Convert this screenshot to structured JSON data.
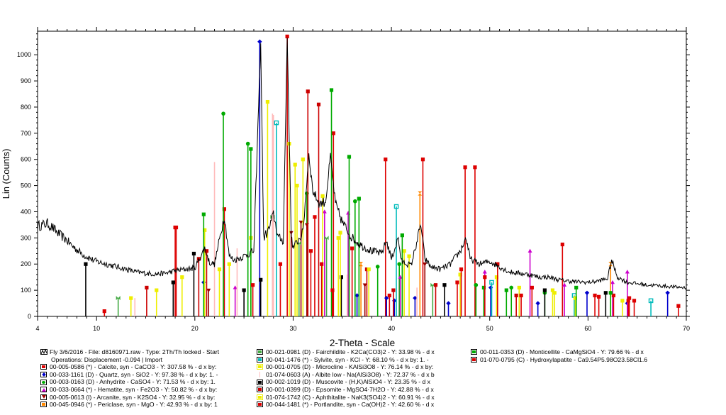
{
  "chart_data": {
    "type": "line",
    "title": "",
    "xlabel": "2-Theta - Scale",
    "ylabel": "Lin (Counts)",
    "xlim": [
      4,
      70
    ],
    "ylim": [
      0,
      1090
    ],
    "x_ticks": [
      4,
      10,
      20,
      30,
      40,
      50,
      60,
      70
    ],
    "y_ticks": [
      0,
      100,
      200,
      300,
      400,
      500,
      600,
      700,
      800,
      900,
      1000
    ],
    "grid": false,
    "legend_placement": "bottom",
    "raw_pattern": {
      "name": "Fly 3/6/2016 - File: d8160971.raw - Type: 2Th/Th locked - Start",
      "color": "#000000",
      "points": [
        [
          4,
          345
        ],
        [
          4.5,
          350
        ],
        [
          5,
          355
        ],
        [
          5.5,
          340
        ],
        [
          6,
          320
        ],
        [
          6.5,
          305
        ],
        [
          7,
          290
        ],
        [
          7.5,
          270
        ],
        [
          8,
          255
        ],
        [
          8.5,
          240
        ],
        [
          9,
          228
        ],
        [
          9.5,
          218
        ],
        [
          10,
          210
        ],
        [
          11,
          200
        ],
        [
          12,
          190
        ],
        [
          13,
          180
        ],
        [
          14,
          170
        ],
        [
          15,
          165
        ],
        [
          16,
          162
        ],
        [
          17,
          165
        ],
        [
          18,
          175
        ],
        [
          19,
          180
        ],
        [
          20,
          185
        ],
        [
          21,
          260
        ],
        [
          21.5,
          205
        ],
        [
          22,
          200
        ],
        [
          23,
          385
        ],
        [
          23.5,
          230
        ],
        [
          24,
          215
        ],
        [
          25,
          230
        ],
        [
          26,
          250
        ],
        [
          26.7,
          1050
        ],
        [
          27,
          300
        ],
        [
          27.5,
          330
        ],
        [
          28,
          390
        ],
        [
          28.5,
          300
        ],
        [
          29,
          290
        ],
        [
          29.4,
          1070
        ],
        [
          29.8,
          320
        ],
        [
          30,
          260
        ],
        [
          31,
          320
        ],
        [
          31.6,
          620
        ],
        [
          32,
          480
        ],
        [
          32.7,
          430
        ],
        [
          33.3,
          440
        ],
        [
          33.8,
          610
        ],
        [
          34.3,
          430
        ],
        [
          35,
          360
        ],
        [
          36,
          300
        ],
        [
          37,
          270
        ],
        [
          38,
          250
        ],
        [
          39,
          240
        ],
        [
          39.5,
          290
        ],
        [
          40,
          220
        ],
        [
          40.7,
          300
        ],
        [
          41,
          210
        ],
        [
          42,
          195
        ],
        [
          43,
          350
        ],
        [
          43.4,
          220
        ],
        [
          44,
          190
        ],
        [
          45,
          180
        ],
        [
          46,
          200
        ],
        [
          47,
          250
        ],
        [
          47.6,
          300
        ],
        [
          48,
          220
        ],
        [
          49,
          200
        ],
        [
          50,
          210
        ],
        [
          51,
          190
        ],
        [
          52,
          170
        ],
        [
          53,
          165
        ],
        [
          54,
          160
        ],
        [
          55,
          150
        ],
        [
          56,
          150
        ],
        [
          57,
          140
        ],
        [
          58,
          135
        ],
        [
          59,
          132
        ],
        [
          60,
          130
        ],
        [
          61,
          135
        ],
        [
          62,
          145
        ],
        [
          62.4,
          215
        ],
        [
          63,
          150
        ],
        [
          64,
          130
        ],
        [
          65,
          125
        ],
        [
          66,
          120
        ],
        [
          67,
          118
        ],
        [
          68,
          115
        ],
        [
          69,
          112
        ],
        [
          70,
          110
        ]
      ]
    },
    "phases": [
      {
        "name": "00-005-0586 (*) - Calcite, syn - CaCO3 - Y: 307.58 % - d x by:",
        "color": "#dd0000",
        "marker": "square",
        "peaks": [
          [
            18.0,
            340
          ],
          [
            23.0,
            410
          ],
          [
            29.4,
            1070
          ],
          [
            36.0,
            260
          ],
          [
            39.4,
            600
          ],
          [
            43.2,
            600
          ],
          [
            47.5,
            570
          ],
          [
            48.5,
            570
          ],
          [
            57.4,
            275
          ],
          [
            60.7,
            80
          ],
          [
            61.1,
            75
          ],
          [
            64.7,
            60
          ]
        ]
      },
      {
        "name": "00-033-1161 (D) - Quartz, syn - SiO2 - Y: 97.38 % - d x by: 1. -",
        "color": "#0000cc",
        "marker": "diamond",
        "peaks": [
          [
            20.9,
            130
          ],
          [
            26.6,
            1050
          ],
          [
            36.5,
            80
          ],
          [
            39.5,
            70
          ],
          [
            40.3,
            60
          ],
          [
            42.4,
            70
          ],
          [
            45.8,
            50
          ],
          [
            50.1,
            110
          ],
          [
            54.9,
            50
          ],
          [
            59.9,
            90
          ],
          [
            64.0,
            50
          ],
          [
            68.1,
            90
          ]
        ]
      },
      {
        "name": "00-003-0163 (D) - Anhydrite - CaSO4 - Y: 71.53 % - d x by: 1.",
        "color": "#00aa00",
        "marker": "circle",
        "peaks": [
          [
            22.9,
            775
          ],
          [
            25.4,
            660
          ],
          [
            31.4,
            470
          ],
          [
            36.3,
            440
          ],
          [
            38.6,
            190
          ],
          [
            40.8,
            200
          ],
          [
            48.6,
            120
          ],
          [
            52.2,
            110
          ],
          [
            55.6,
            90
          ]
        ]
      },
      {
        "name": "00-033-0664 (*) - Hematite, syn - Fe2O3 - Y: 50.82 % - d x by:",
        "color": "#cc00cc",
        "marker": "triangle-up",
        "peaks": [
          [
            24.1,
            110
          ],
          [
            33.2,
            400
          ],
          [
            35.6,
            395
          ],
          [
            40.9,
            150
          ],
          [
            49.5,
            170
          ],
          [
            54.1,
            250
          ],
          [
            57.6,
            120
          ],
          [
            62.5,
            130
          ],
          [
            64.0,
            170
          ]
        ]
      },
      {
        "name": "00-005-0613 (I) - Arcanite, syn - K2SO4 - Y: 32.95 % - d x by:",
        "color": "#990000",
        "marker": "triangle-down",
        "peaks": [
          [
            21.4,
            100
          ],
          [
            29.8,
            320
          ],
          [
            30.8,
            360
          ],
          [
            31.4,
            350
          ],
          [
            37.3,
            120
          ],
          [
            43.4,
            200
          ]
        ]
      },
      {
        "name": "00-045-0946 (*) - Periclase, syn - MgO - Y: 42.93 % - d x by: 1",
        "color": "#ff8800",
        "marker": "hourglass",
        "peaks": [
          [
            36.9,
            200
          ],
          [
            42.9,
            470
          ],
          [
            62.3,
            200
          ]
        ]
      },
      {
        "name": "00-021-0981 (D) - Fairchildite - K2Ca(CO3)2 - Y: 33.98 % - d x",
        "color": "#44aa44",
        "marker": "bowtie",
        "peaks": [
          [
            12.2,
            70
          ],
          [
            27.9,
            380
          ],
          [
            30.6,
            280
          ],
          [
            33.4,
            300
          ],
          [
            44.2,
            120
          ]
        ]
      },
      {
        "name": "00-041-1476 (*) - Sylvite, syn - KCl - Y: 68.10 % - d x by: 1. -",
        "color": "#00bbbb",
        "marker": "square-h",
        "peaks": [
          [
            28.3,
            740
          ],
          [
            40.5,
            420
          ],
          [
            50.2,
            130
          ],
          [
            58.6,
            80
          ],
          [
            66.4,
            60
          ]
        ]
      },
      {
        "name": "00-001-0705 (D) - Microcline - KAlSi3O8 - Y: 76.14 % - d x by:",
        "color": "#eeee00",
        "marker": "square",
        "peaks": [
          [
            13.5,
            70
          ],
          [
            21.0,
            330
          ],
          [
            22.5,
            180
          ],
          [
            23.5,
            200
          ],
          [
            25.7,
            300
          ],
          [
            27.4,
            820
          ],
          [
            29.6,
            660
          ],
          [
            30.4,
            500
          ],
          [
            33.0,
            460
          ],
          [
            34.6,
            300
          ],
          [
            41.8,
            230
          ],
          [
            50.7,
            150
          ],
          [
            53.0,
            110
          ],
          [
            56.6,
            90
          ],
          [
            58.7,
            70
          ],
          [
            63.5,
            60
          ]
        ]
      },
      {
        "name": "01-074-0603 (A) - Albite low - Na(AlSi3O8) - Y: 72.37 % - d x b",
        "color": "#ffbbbb",
        "marker": "none",
        "peaks": [
          [
            13.9,
            70
          ],
          [
            22.0,
            590
          ],
          [
            24.3,
            260
          ],
          [
            27.9,
            775
          ],
          [
            28.0,
            770
          ],
          [
            30.2,
            200
          ],
          [
            35.5,
            160
          ],
          [
            42.6,
            110
          ]
        ]
      },
      {
        "name": "00-002-1019 (D) - Muscovite - (H,K)AlSiO4 - Y: 23.35 % - d x",
        "color": "#000000",
        "marker": "square",
        "peaks": [
          [
            8.9,
            200
          ],
          [
            17.8,
            130
          ],
          [
            19.9,
            240
          ],
          [
            25.0,
            100
          ],
          [
            26.7,
            140
          ],
          [
            34.9,
            150
          ],
          [
            45.4,
            120
          ],
          [
            55.6,
            100
          ],
          [
            61.8,
            90
          ]
        ]
      },
      {
        "name": "00-001-0399 (D) - Epsomite - MgSO4·7H2O - Y: 42.88 % - d x",
        "color": "#cc0000",
        "marker": "square",
        "peaks": [
          [
            15.1,
            110
          ],
          [
            20.4,
            220
          ],
          [
            21.2,
            250
          ],
          [
            31.5,
            860
          ],
          [
            32.6,
            810
          ],
          [
            37.5,
            180
          ],
          [
            40.2,
            100
          ],
          [
            44.5,
            120
          ],
          [
            52.7,
            80
          ]
        ]
      },
      {
        "name": "01-074-1742 (C) - Aphthitalite - NaK3(SO4)2 - Y: 60.91 % - d x",
        "color": "#eeee00",
        "marker": "square",
        "peaks": [
          [
            16.1,
            100
          ],
          [
            18.7,
            150
          ],
          [
            30.2,
            580
          ],
          [
            31.0,
            600
          ],
          [
            34.8,
            320
          ],
          [
            37.7,
            180
          ],
          [
            41.3,
            250
          ],
          [
            47.0,
            160
          ],
          [
            56.4,
            100
          ]
        ]
      },
      {
        "name": "00-044-1481 (*) - Portlandite, syn - Ca(OH)2 - Y: 42.60 % - d x",
        "color": "#dd0000",
        "marker": "square",
        "peaks": [
          [
            18.1,
            340
          ],
          [
            28.7,
            200
          ],
          [
            34.1,
            700
          ],
          [
            47.1,
            180
          ],
          [
            50.8,
            200
          ],
          [
            54.3,
            110
          ],
          [
            62.6,
            80
          ],
          [
            64.2,
            70
          ]
        ]
      },
      {
        "name": "00-011-0353 (D) - Monticellite - CaMgSiO4 - Y: 79.66 % - d x",
        "color": "#00aa00",
        "marker": "square",
        "peaks": [
          [
            20.9,
            390
          ],
          [
            25.7,
            640
          ],
          [
            33.9,
            865
          ],
          [
            35.7,
            610
          ],
          [
            36.7,
            450
          ],
          [
            41.1,
            310
          ],
          [
            49.4,
            110
          ],
          [
            51.7,
            100
          ],
          [
            58.8,
            110
          ],
          [
            62.3,
            90
          ]
        ]
      },
      {
        "name": "01-070-0795 (C) - Hydroxylapatite - Ca9.54P5.98O23.58Cl1.6",
        "color": "#dd0000",
        "marker": "square",
        "peaks": [
          [
            10.8,
            20
          ],
          [
            25.9,
            120
          ],
          [
            31.8,
            250
          ],
          [
            32.2,
            380
          ],
          [
            32.9,
            200
          ],
          [
            34.0,
            100
          ],
          [
            39.8,
            80
          ],
          [
            46.7,
            130
          ],
          [
            49.5,
            150
          ],
          [
            53.2,
            80
          ],
          [
            64.1,
            60
          ],
          [
            69.2,
            40
          ]
        ]
      }
    ]
  },
  "legend": {
    "raw_line_2": "Operations: Displacement -0.094 | Import"
  }
}
